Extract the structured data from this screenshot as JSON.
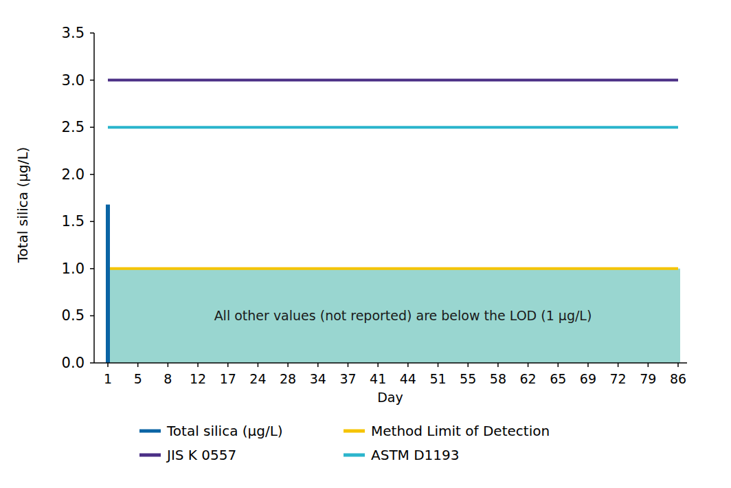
{
  "chart_data": {
    "type": "bar",
    "y_label": "Total silica (µg/L)",
    "x_label": "Day",
    "categories": [
      "1",
      "5",
      "8",
      "12",
      "17",
      "24",
      "28",
      "34",
      "37",
      "41",
      "44",
      "51",
      "55",
      "58",
      "62",
      "65",
      "69",
      "72",
      "79",
      "86"
    ],
    "series": [
      {
        "name": "Total silica (µg/L)",
        "type": "bar",
        "color": "#0a64a4",
        "values": [
          1.68,
          null,
          null,
          null,
          null,
          null,
          null,
          null,
          null,
          null,
          null,
          null,
          null,
          null,
          null,
          null,
          null,
          null,
          null,
          null
        ]
      },
      {
        "name": "Method Limit of Detection",
        "type": "area",
        "color": "#f5c400",
        "values": [
          1,
          1,
          1,
          1,
          1,
          1,
          1,
          1,
          1,
          1,
          1,
          1,
          1,
          1,
          1,
          1,
          1,
          1,
          1,
          1
        ]
      },
      {
        "name": "JIS K 0557",
        "type": "line",
        "color": "#4b2f86",
        "values": [
          3,
          3,
          3,
          3,
          3,
          3,
          3,
          3,
          3,
          3,
          3,
          3,
          3,
          3,
          3,
          3,
          3,
          3,
          3,
          3
        ]
      },
      {
        "name": "ASTM D1193",
        "type": "line",
        "color": "#2bb5cc",
        "values": [
          2.5,
          2.5,
          2.5,
          2.5,
          2.5,
          2.5,
          2.5,
          2.5,
          2.5,
          2.5,
          2.5,
          2.5,
          2.5,
          2.5,
          2.5,
          2.5,
          2.5,
          2.5,
          2.5,
          2.5
        ]
      }
    ],
    "annotations": [
      {
        "text": "All other values (not reported) are below the LOD (1 µg/L)"
      }
    ],
    "ylim": [
      0,
      3.5
    ],
    "yticks": [
      {
        "value": 0,
        "label": "0.0"
      },
      0.5,
      {
        "value": 1,
        "label": "1.0"
      },
      1.5,
      {
        "value": 2,
        "label": "2.0"
      },
      2.5,
      {
        "value": 3,
        "label": "3.0"
      },
      3.5
    ],
    "grid": false,
    "legend": "bottom"
  }
}
